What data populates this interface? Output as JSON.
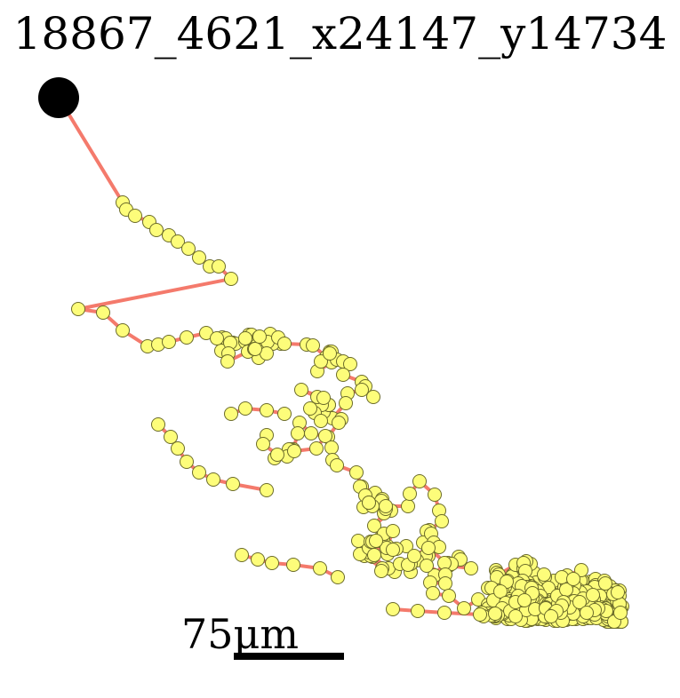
{
  "figure": {
    "title": "18867_4621_x24147_y14734",
    "scale_label": "75μm",
    "colors": {
      "trace_line": "#f47a6c",
      "node_fill": "#fdfd7a",
      "node_stroke": "#6b6b2a",
      "soma": "#000000",
      "scale_bar": "#000000"
    }
  }
}
